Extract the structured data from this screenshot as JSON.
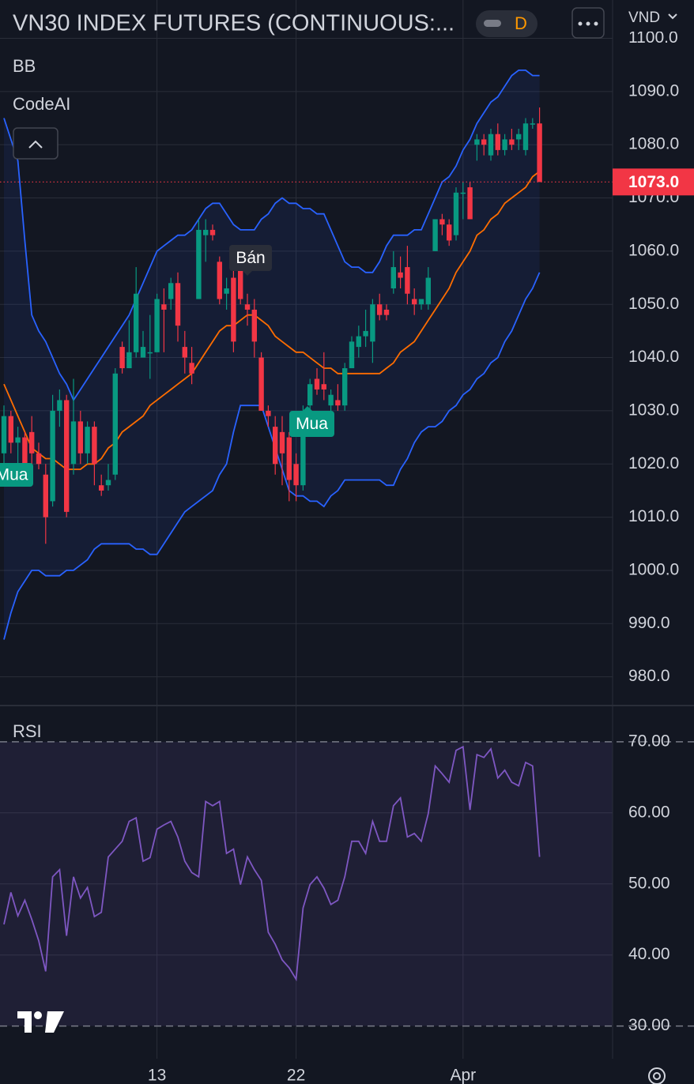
{
  "chart_data": [
    {
      "type": "candlestick",
      "title": "VN30 INDEX FUTURES (CONTINUOUS:...",
      "interval": "D",
      "currency": "VND",
      "indicators": [
        "BB",
        "CodeAI"
      ],
      "categories": [
        null,
        null,
        null,
        null,
        null,
        null,
        null,
        null,
        null,
        null,
        null,
        null,
        null,
        null,
        null,
        null,
        null,
        null,
        null,
        null,
        null,
        null,
        "13",
        null,
        null,
        null,
        null,
        null,
        null,
        null,
        null,
        null,
        null,
        null,
        null,
        null,
        null,
        null,
        null,
        null,
        null,
        null,
        "22",
        null,
        null,
        null,
        null,
        null,
        null,
        null,
        null,
        null,
        null,
        null,
        null,
        null,
        null,
        null,
        null,
        null,
        null,
        null,
        null,
        null,
        null,
        null,
        "Apr",
        null,
        null,
        null,
        null,
        null,
        null,
        null,
        null,
        null,
        null,
        null
      ],
      "open": [
        1022,
        1029,
        1024,
        1025,
        1026,
        1022,
        1018,
        1013,
        1030,
        1032,
        1020,
        1028,
        1022,
        1027,
        1016,
        1016,
        1018,
        1042,
        1038,
        1041,
        1040,
        1041,
        1041,
        1050,
        1051,
        1054,
        1042,
        1039,
        1051,
        1063,
        1064,
        1058,
        1052,
        1055,
        1057,
        1050,
        1049,
        1040,
        1030,
        1027,
        1026,
        1025,
        1020,
        1016,
        1031,
        1036,
        1035,
        1031,
        1032,
        1031,
        1038,
        1042,
        1044,
        1043,
        1050,
        1049,
        1053,
        1056,
        1057,
        1051,
        1050,
        1050,
        1060,
        1066,
        1065,
        1063,
        1071,
        1072,
        1080,
        1081,
        1078,
        1082,
        1079,
        1081,
        1081,
        1079,
        1084,
        1084
      ],
      "high": [
        1031,
        1030,
        1027,
        1026,
        1029,
        1024,
        1020,
        1033,
        1034,
        1033,
        1036,
        1030,
        1028,
        1028,
        1018,
        1020,
        1038,
        1043,
        1047,
        1057,
        1045,
        1048,
        1052,
        1053,
        1055,
        1056,
        1045,
        1042,
        1066,
        1066,
        1065,
        1059,
        1055,
        1058,
        1058,
        1052,
        1051,
        1041,
        1031,
        1029,
        1029,
        1026,
        1022,
        1031,
        1036,
        1038,
        1041,
        1034,
        1035,
        1039,
        1044,
        1046,
        1049,
        1051,
        1052,
        1050,
        1060,
        1059,
        1061,
        1053,
        1051,
        1057,
        1066,
        1067,
        1066,
        1072,
        1073,
        1073,
        1082,
        1082,
        1083,
        1084,
        1082,
        1083,
        1083,
        1085,
        1085,
        1087
      ],
      "low": [
        1020,
        1022,
        1019,
        1018,
        1020,
        1019,
        1005,
        1012,
        1027,
        1010,
        1018,
        1020,
        1020,
        1016,
        1014,
        1015,
        1017,
        1037,
        1038,
        1040,
        1040,
        1036,
        1041,
        1041,
        1049,
        1043,
        1037,
        1035,
        1051,
        1058,
        1062,
        1050,
        1049,
        1041,
        1050,
        1046,
        1040,
        1030,
        1027,
        1018,
        1016,
        1013,
        1013,
        1015,
        1029,
        1033,
        1032,
        1029,
        1030,
        1030,
        1038,
        1040,
        1042,
        1039,
        1047,
        1047,
        1052,
        1053,
        1050,
        1048,
        1049,
        1049,
        1060,
        1063,
        1061,
        1062,
        1066,
        1066,
        1077,
        1078,
        1077,
        1078,
        1078,
        1079,
        1079,
        1078,
        1083,
        1073
      ],
      "close": [
        1029,
        1024,
        1025,
        1020,
        1022,
        1020,
        1010,
        1030,
        1032,
        1011,
        1028,
        1022,
        1027,
        1020,
        1015,
        1017,
        1037,
        1038,
        1041,
        1052,
        1042,
        1041,
        1051,
        1049,
        1054,
        1046,
        1040,
        1037,
        1064,
        1064,
        1063,
        1051,
        1053,
        1043,
        1051,
        1049,
        1043,
        1030,
        1029,
        1020,
        1022,
        1017,
        1016,
        1030,
        1035,
        1034,
        1034,
        1033,
        1031,
        1038,
        1043,
        1044,
        1045,
        1050,
        1048,
        1048,
        1057,
        1055,
        1052,
        1050,
        1051,
        1055,
        1066,
        1065,
        1062,
        1071,
        1071,
        1066,
        1081,
        1080,
        1082,
        1079,
        1081,
        1080,
        1082,
        1084,
        1084,
        1073
      ],
      "up_color": "#089981",
      "down_color": "#f23645",
      "series": [
        {
          "color": "#2962ff",
          "values": [
            1085,
            1081,
            1077,
            1062,
            1048,
            1045,
            1043,
            1040,
            1037,
            1035,
            1032,
            1034,
            1036,
            1038,
            1040,
            1042,
            1044,
            1046,
            1048,
            1051,
            1054,
            1057,
            1060,
            1061,
            1062,
            1063,
            1063,
            1064,
            1066,
            1068,
            1069,
            1069,
            1067,
            1065,
            1064,
            1064,
            1064,
            1066,
            1067,
            1069,
            1070,
            1069,
            1069,
            1068,
            1068,
            1067,
            1067,
            1064,
            1061,
            1058,
            1057,
            1057,
            1056,
            1056,
            1058,
            1061,
            1063,
            1063,
            1063,
            1064,
            1064,
            1067,
            1070,
            1073,
            1074,
            1076,
            1079,
            1081,
            1084,
            1086,
            1088,
            1089,
            1091,
            1093,
            1094,
            1094,
            1093,
            1093
          ]
        },
        {
          "color": "#ff6d00",
          "values": [
            1035,
            1032,
            1029,
            1026,
            1023,
            1022,
            1021,
            1021,
            1020,
            1019,
            1019,
            1019,
            1020,
            1020,
            1021,
            1023,
            1024,
            1026,
            1027,
            1028,
            1029,
            1031,
            1032,
            1033,
            1034,
            1035,
            1036,
            1037,
            1039,
            1041,
            1043,
            1045,
            1046,
            1046,
            1047,
            1048,
            1048,
            1047,
            1046,
            1044,
            1043,
            1042,
            1041,
            1041,
            1040,
            1039,
            1038,
            1038,
            1037,
            1037,
            1037,
            1037,
            1037,
            1037,
            1037,
            1038,
            1039,
            1041,
            1042,
            1043,
            1045,
            1047,
            1049,
            1051,
            1053,
            1056,
            1058,
            1060,
            1063,
            1064,
            1066,
            1067,
            1069,
            1070,
            1071,
            1072,
            1074,
            1075
          ]
        },
        {
          "color": "#2962ff",
          "values": [
            987,
            992,
            996,
            998,
            1000,
            1000,
            999,
            999,
            999,
            1000,
            1000,
            1001,
            1002,
            1004,
            1005,
            1005,
            1005,
            1005,
            1005,
            1004,
            1004,
            1003,
            1003,
            1005,
            1007,
            1009,
            1011,
            1012,
            1013,
            1014,
            1015,
            1018,
            1020,
            1026,
            1031,
            1031,
            1031,
            1031,
            1027,
            1023,
            1019,
            1015,
            1014,
            1014,
            1013,
            1013,
            1012,
            1014,
            1015,
            1017,
            1017,
            1017,
            1017,
            1017,
            1017,
            1016,
            1016,
            1019,
            1021,
            1024,
            1026,
            1027,
            1027,
            1028,
            1030,
            1031,
            1033,
            1034,
            1036,
            1037,
            1039,
            1040,
            1043,
            1045,
            1048,
            1051,
            1053,
            1056
          ]
        }
      ],
      "signals": [
        "Mua",
        "Bán",
        "Mua"
      ],
      "last_price": {
        "value": 1073,
        "label": "1073.0"
      },
      "ylim": [
        974.6,
        1107.2
      ],
      "yticks": [
        {
          "value": 980,
          "label": "980.0"
        },
        {
          "value": 990,
          "label": "990.0"
        },
        {
          "value": 1000,
          "label": "1000.0"
        },
        {
          "value": 1010,
          "label": "1010.0"
        },
        {
          "value": 1020,
          "label": "1020.0"
        },
        {
          "value": 1030,
          "label": "1030.0"
        },
        {
          "value": 1040,
          "label": "1040.0"
        },
        {
          "value": 1050,
          "label": "1050.0"
        },
        {
          "value": 1060,
          "label": "1060.0"
        },
        {
          "value": 1070,
          "label": "1070.0"
        },
        {
          "value": 1080,
          "label": "1080.0"
        },
        {
          "value": 1090,
          "label": "1090.0"
        },
        {
          "value": 1100,
          "label": "1100.0"
        }
      ],
      "grid": true
    },
    {
      "type": "line",
      "title": "RSI",
      "color": "#7e57c2",
      "values": [
        44.3,
        48.8,
        45.5,
        47.7,
        45,
        42,
        37.7,
        51,
        52,
        42.7,
        51,
        48,
        49.5,
        45.4,
        46,
        53.8,
        54.9,
        56,
        58.8,
        59.3,
        53.2,
        53.7,
        57.7,
        58.3,
        58.8,
        56.6,
        53.2,
        51.6,
        51,
        61.6,
        61,
        61.6,
        54.3,
        54.9,
        49.9,
        53.8,
        52,
        50.5,
        43.2,
        41.5,
        39.3,
        38.2,
        36.6,
        46.6,
        49.9,
        51,
        49.4,
        47.1,
        47.7,
        51,
        56,
        56,
        54.3,
        58.8,
        56,
        56,
        61,
        62.1,
        56.6,
        57.1,
        56,
        59.9,
        66.6,
        65.5,
        64.3,
        68.8,
        69.3,
        60.4,
        68.2,
        67.8,
        69,
        64.9,
        66,
        64.3,
        63.8,
        67.1,
        66.6,
        53.8
      ],
      "bands": [
        30,
        70
      ],
      "ylim": [
        25.4,
        75.1
      ],
      "yticks": [
        {
          "value": 30,
          "label": "30.00"
        },
        {
          "value": 40,
          "label": "40.00"
        },
        {
          "value": 50,
          "label": "50.00"
        },
        {
          "value": 60,
          "label": "60.00"
        },
        {
          "value": 70,
          "label": "70.00"
        }
      ],
      "grid": true
    }
  ]
}
